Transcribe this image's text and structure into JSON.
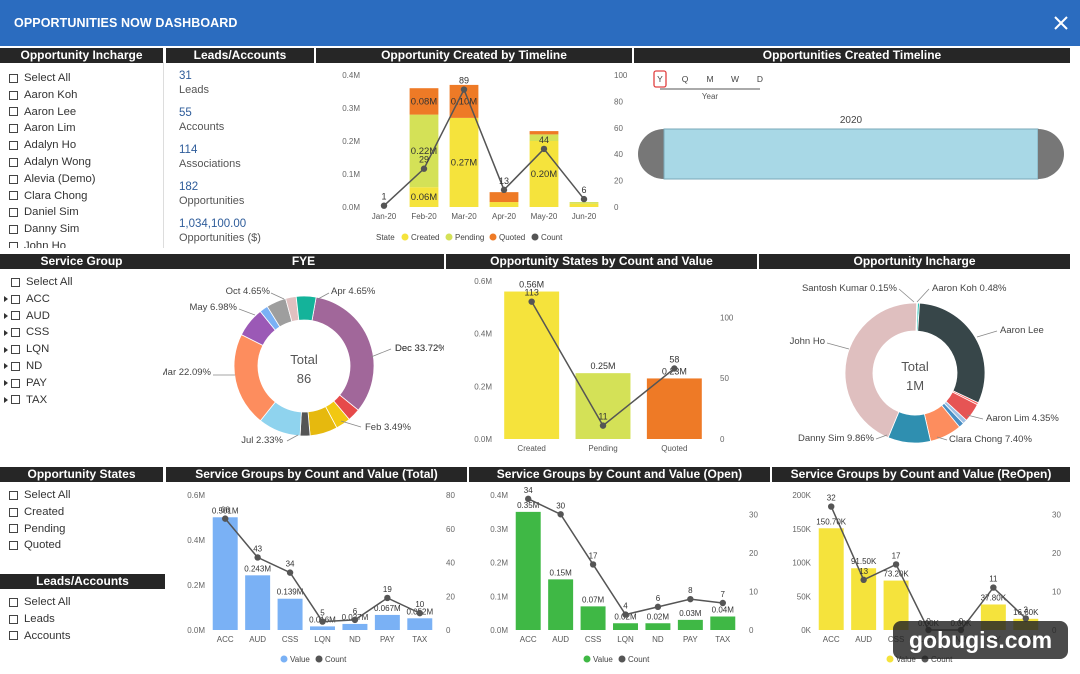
{
  "app_title": "OPPORTUNITIES NOW DASHBOARD",
  "close_icon": "close-icon",
  "colors": {
    "topbar": "#2b6cbf",
    "header": "#262626",
    "yellow": "#f5e33c",
    "green_yellow": "#d4e157",
    "orange": "#ee7a26",
    "dark": "#444444",
    "blue": "#7ab1f5",
    "green": "#3fb845"
  },
  "incharge_slicer": {
    "title": "Opportunity Incharge",
    "items": [
      "Select All",
      "Aaron Koh",
      "Aaron Lee",
      "Aaron Lim",
      "Adalyn Ho",
      "Adalyn Wong",
      "Alevia (Demo)",
      "Clara Chong",
      "Daniel Sim",
      "Danny Sim",
      "John Ho"
    ]
  },
  "kpis": {
    "title": "Leads/Accounts",
    "items": [
      {
        "value": "31",
        "label": "Leads"
      },
      {
        "value": "55",
        "label": "Accounts"
      },
      {
        "value": "114",
        "label": "Associations"
      },
      {
        "value": "182",
        "label": "Opportunities"
      },
      {
        "value": "1,034,100.00",
        "label": "Opportunities ($)"
      }
    ]
  },
  "timeline_filter": {
    "title": "Opportunities Created Timeline",
    "granularity": [
      "Y",
      "Q",
      "M",
      "W",
      "D"
    ],
    "selected": "Y",
    "level_label": "Year",
    "year": "2020"
  },
  "service_group_slicer": {
    "title": "Service Group",
    "items": [
      "Select All",
      "ACC",
      "AUD",
      "CSS",
      "LQN",
      "ND",
      "PAY",
      "TAX"
    ]
  },
  "states_slicer": {
    "title": "Opportunity States",
    "items": [
      "Select All",
      "Created",
      "Pending",
      "Quoted"
    ]
  },
  "leads_slicer": {
    "title": "Leads/Accounts",
    "items": [
      "Select All",
      "Leads",
      "Accounts"
    ]
  },
  "chart_data": [
    {
      "id": "timeline",
      "type": "bar",
      "title": "Opportunity Created by Timeline",
      "categories": [
        "Jan-20",
        "Feb-20",
        "Mar-20",
        "Apr-20",
        "May-20",
        "Jun-20"
      ],
      "stacked": true,
      "series": [
        {
          "name": "Created",
          "color": "#f5e33c",
          "values": [
            0,
            0.06,
            0.27,
            0.015,
            0.2,
            0.01
          ],
          "labels": [
            "",
            "0.06M",
            "0.27M",
            "",
            "0.20M",
            ""
          ]
        },
        {
          "name": "Pending",
          "color": "#d4e157",
          "values": [
            0,
            0.22,
            0,
            0,
            0.02,
            0.005
          ],
          "labels": [
            "",
            "0.22M",
            "",
            "",
            "",
            ""
          ]
        },
        {
          "name": "Quoted",
          "color": "#ee7a26",
          "values": [
            0,
            0.08,
            0.1,
            0.03,
            0.01,
            0
          ],
          "labels": [
            "",
            "0.08M",
            "0.10M",
            "",
            "",
            ""
          ]
        }
      ],
      "line": {
        "name": "Count",
        "color": "#555555",
        "values": [
          1,
          29,
          89,
          13,
          44,
          6
        ]
      },
      "y_ticks": [
        "0.0M",
        "0.1M",
        "0.2M",
        "0.3M",
        "0.4M"
      ],
      "ylim": [
        0,
        0.4
      ],
      "y2_ticks": [
        "0",
        "20",
        "40",
        "60",
        "80",
        "100"
      ],
      "y2lim": [
        0,
        100
      ],
      "legend_title": "State",
      "legend": [
        "Created",
        "Pending",
        "Quoted",
        "Count"
      ]
    },
    {
      "id": "fye",
      "type": "pie",
      "title": "FYE",
      "center_label": "Total",
      "center_value": "86",
      "slices": [
        {
          "label": "Dec 33.72%",
          "value": 33.72,
          "color": "#a1679a"
        },
        {
          "label": "",
          "value": 3.0,
          "color": "#e64a4a"
        },
        {
          "label": "Feb 3.49%",
          "value": 3.49,
          "color": "#f2c811"
        },
        {
          "label": "",
          "value": 6.5,
          "color": "#e6b90e"
        },
        {
          "label": "Jul 2.33%",
          "value": 2.33,
          "color": "#555555"
        },
        {
          "label": "",
          "value": 10.0,
          "color": "#8fd3ee"
        },
        {
          "label": "Mar 22.09%",
          "value": 22.09,
          "color": "#fd8d5e"
        },
        {
          "label": "May 6.98%",
          "value": 6.98,
          "color": "#9b59b6"
        },
        {
          "label": "",
          "value": 2.0,
          "color": "#7ab1f5"
        },
        {
          "label": "Oct 4.65%",
          "value": 4.65,
          "color": "#9e9e9e"
        },
        {
          "label": "",
          "value": 2.5,
          "color": "#e0c0c0"
        },
        {
          "label": "Apr 4.65%",
          "value": 4.65,
          "color": "#14b39a"
        }
      ]
    },
    {
      "id": "states",
      "type": "bar",
      "title": "Opportunity States by Count and Value",
      "categories": [
        "Created",
        "Pending",
        "Quoted"
      ],
      "values": [
        0.56,
        0.25,
        0.23
      ],
      "value_labels": [
        "0.56M",
        "0.25M",
        "0.23M"
      ],
      "colors": [
        "#f5e33c",
        "#d4e157",
        "#ee7a26"
      ],
      "line": {
        "name": "Count",
        "values": [
          113,
          11,
          58
        ]
      },
      "y_ticks": [
        "0.0M",
        "0.2M",
        "0.4M",
        "0.6M"
      ],
      "ylim": [
        0,
        0.6
      ],
      "y2_ticks": [
        "0",
        "50",
        "100"
      ],
      "y2lim": [
        0,
        130
      ]
    },
    {
      "id": "incharge",
      "type": "pie",
      "title": "Opportunity Incharge",
      "center_label": "Total",
      "center_value": "1M",
      "slices": [
        {
          "label": "Aaron Koh 0.48%",
          "value": 0.48,
          "color": "#2ec4b6"
        },
        {
          "label": "Aaron Lee",
          "value": 31.0,
          "color": "#374649"
        },
        {
          "label": "",
          "value": 0.5,
          "color": "#fd625e"
        },
        {
          "label": "Aaron Lim 4.35%",
          "value": 4.35,
          "color": "#e65454"
        },
        {
          "label": "",
          "value": 1.0,
          "color": "#9fc0e4"
        },
        {
          "label": "",
          "value": 1.2,
          "color": "#4a8fc4"
        },
        {
          "label": "Clara Chong 7.40%",
          "value": 7.4,
          "color": "#fd8d5e"
        },
        {
          "label": "Danny Sim 9.86%",
          "value": 9.86,
          "color": "#2f8fb0"
        },
        {
          "label": "John Ho",
          "value": 44.2,
          "color": "#dfbfbf"
        },
        {
          "label": "Santosh Kumar 0.15%",
          "value": 0.15,
          "color": "#666666"
        }
      ]
    },
    {
      "id": "sg_total",
      "type": "bar",
      "title": "Service Groups by Count and Value (Total)",
      "categories": [
        "ACC",
        "AUD",
        "CSS",
        "LQN",
        "ND",
        "PAY",
        "TAX"
      ],
      "color": "#7ab1f5",
      "values": [
        0.501,
        0.243,
        0.139,
        0.016,
        0.027,
        0.067,
        0.052
      ],
      "value_labels": [
        "0.501M",
        "0.243M",
        "0.139M",
        "0.016M",
        "0.027M",
        "0.067M",
        "0.052M"
      ],
      "line": {
        "name": "Count",
        "values": [
          66,
          43,
          34,
          5,
          6,
          19,
          10
        ]
      },
      "y_ticks": [
        "0.0M",
        "0.2M",
        "0.4M",
        "0.6M"
      ],
      "ylim": [
        0,
        0.6
      ],
      "y2_ticks": [
        "0",
        "20",
        "40",
        "60",
        "80"
      ],
      "y2lim": [
        0,
        80
      ],
      "legend": [
        "Value",
        "Count"
      ]
    },
    {
      "id": "sg_open",
      "type": "bar",
      "title": "Service Groups by Count and Value (Open)",
      "categories": [
        "ACC",
        "AUD",
        "CSS",
        "LQN",
        "ND",
        "PAY",
        "TAX"
      ],
      "color": "#3fb845",
      "values": [
        0.35,
        0.15,
        0.07,
        0.02,
        0.02,
        0.03,
        0.04
      ],
      "value_labels": [
        "0.35M",
        "0.15M",
        "0.07M",
        "0.02M",
        "0.02M",
        "0.03M",
        "0.04M"
      ],
      "line": {
        "name": "Count",
        "values": [
          34,
          30,
          17,
          4,
          6,
          8,
          7
        ]
      },
      "y_ticks": [
        "0.0M",
        "0.1M",
        "0.2M",
        "0.3M",
        "0.4M"
      ],
      "ylim": [
        0,
        0.4
      ],
      "y2_ticks": [
        "0",
        "10",
        "20",
        "30"
      ],
      "y2lim": [
        0,
        35
      ],
      "legend": [
        "Value",
        "Count"
      ]
    },
    {
      "id": "sg_reopen",
      "type": "bar",
      "title": "Service Groups by Count and Value (ReOpen)",
      "categories": [
        "ACC",
        "AUD",
        "CSS",
        "LQN",
        "ND",
        "PAY",
        "TAX"
      ],
      "color": "#f5e33c",
      "values": [
        150.7,
        91.5,
        73.2,
        0,
        0,
        37.8,
        16.6
      ],
      "value_labels": [
        "150.70K",
        "91.50K",
        "73.20K",
        "0.00K",
        "0.00K",
        "37.80K",
        "16.60K"
      ],
      "line": {
        "name": "Count",
        "values": [
          32,
          13,
          17,
          0,
          0,
          11,
          3
        ]
      },
      "y_ticks": [
        "0K",
        "50K",
        "100K",
        "150K",
        "200K"
      ],
      "ylim": [
        0,
        200
      ],
      "y2_ticks": [
        "0",
        "10",
        "20",
        "30"
      ],
      "y2lim": [
        0,
        35
      ],
      "legend": [
        "Value",
        "Count"
      ]
    }
  ],
  "watermark": "gobugis.com"
}
